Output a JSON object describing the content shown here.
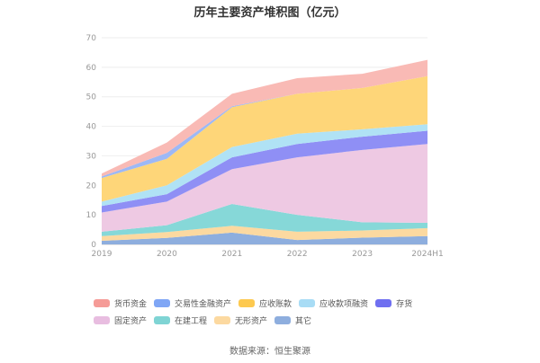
{
  "chart_data": {
    "type": "area",
    "stacked": true,
    "title": "历年主要资产堆积图（亿元）",
    "categories": [
      "2019",
      "2020",
      "2021",
      "2022",
      "2023",
      "2024H1"
    ],
    "ylim": [
      0,
      70
    ],
    "yticks": [
      0,
      10,
      20,
      30,
      40,
      50,
      60,
      70
    ],
    "grid": true,
    "legend_position": "bottom",
    "series": [
      {
        "name": "其它",
        "color": "#8eaede",
        "values": [
          1.2,
          2.2,
          4.0,
          1.5,
          2.3,
          2.8
        ]
      },
      {
        "name": "无形资产",
        "color": "#fcd9a0",
        "values": [
          1.6,
          2.0,
          2.3,
          2.8,
          2.4,
          2.7
        ]
      },
      {
        "name": "在建工程",
        "color": "#86d8d8",
        "values": [
          1.5,
          2.3,
          7.4,
          5.7,
          2.8,
          1.8
        ]
      },
      {
        "name": "固定资产",
        "color": "#eec9e3",
        "values": [
          6.5,
          8.0,
          11.8,
          19.5,
          24.5,
          26.7
        ]
      },
      {
        "name": "存货",
        "color": "#8f8ff5",
        "values": [
          2.2,
          2.5,
          4.0,
          4.5,
          4.5,
          4.5
        ]
      },
      {
        "name": "应收款项融资",
        "color": "#b0e2f5",
        "values": [
          1.5,
          3.0,
          3.5,
          3.5,
          2.5,
          2.2
        ]
      },
      {
        "name": "应收账款",
        "color": "#fed679",
        "values": [
          8.0,
          9.0,
          13.5,
          13.5,
          14.0,
          16.3
        ]
      },
      {
        "name": "交易性金融资产",
        "color": "#9db8f5",
        "values": [
          0.5,
          2.0,
          0.3,
          0,
          0,
          0
        ]
      },
      {
        "name": "货币资金",
        "color": "#f9bab5",
        "values": [
          1.0,
          3.5,
          4.2,
          5.3,
          4.8,
          5.5
        ]
      }
    ],
    "legend_order": [
      "货币资金",
      "交易性金融资产",
      "应收账款",
      "应收款项融资",
      "存货",
      "固定资产",
      "在建工程",
      "无形资产",
      "其它"
    ],
    "legend_colors": {
      "货币资金": "#f59b97",
      "交易性金融资产": "#7fa6f5",
      "应收账款": "#fdc94f",
      "应收款项融资": "#a8dcf5",
      "存货": "#6f6ff0",
      "固定资产": "#e8bde0",
      "在建工程": "#7fd4d4",
      "无形资产": "#fcd9a0",
      "其它": "#8eaede"
    }
  },
  "source": "数据来源：恒生聚源"
}
